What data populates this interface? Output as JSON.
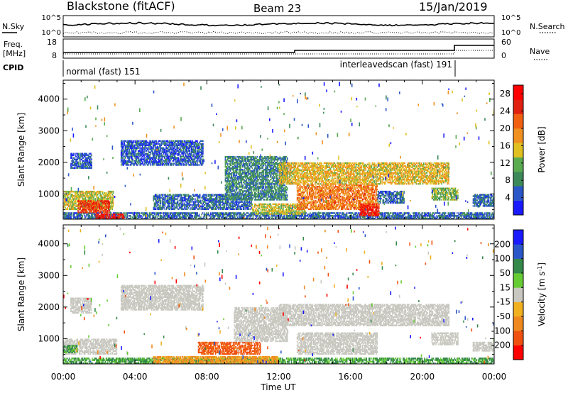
{
  "header": {
    "title": "Blackstone (fitACF)",
    "beam": "Beam 23",
    "date": "15/Jan/2019"
  },
  "status_panels": {
    "nsky_label": "N.Sky",
    "nsearch_label": "N.Search",
    "noise_ticks": [
      "10^5",
      "10^0"
    ],
    "freq_label": "Freq.",
    "freq_unit": "[MHz]",
    "freq_ticks": [
      "18",
      "8"
    ],
    "nave_label": "Nave",
    "nave_ticks": [
      "60",
      "0"
    ],
    "cpid_label": "CPID",
    "cpid_segments": [
      {
        "label": "normal (fast) 151",
        "start_h": 0.0,
        "end_h": 21.8
      },
      {
        "label": "interleavedscan (fast) 191",
        "start_h": 21.8,
        "end_h": 24.0
      }
    ]
  },
  "colors": {
    "power": [
      "#1a1aff",
      "#2a56c8",
      "#3c8a5a",
      "#5aaa50",
      "#e0c020",
      "#f09020",
      "#f06010",
      "#e02010",
      "#ff0000"
    ],
    "velocity": [
      "#ff0000",
      "#f05010",
      "#f08820",
      "#f0b020",
      "#c8c8c0",
      "#66cc33",
      "#33884a",
      "#2a56c8",
      "#1a1aff"
    ],
    "ground_scatter": "#c8c8c0"
  },
  "chart_data": [
    {
      "type": "heatmap",
      "panel": "power",
      "ylabel": "Slant Range [km]",
      "xlabel": "Time UT",
      "xlim_h": [
        0,
        24
      ],
      "ylim": [
        200,
        4600
      ],
      "x_ticks": [
        "00:00",
        "04:00",
        "08:00",
        "12:00",
        "16:00",
        "20:00",
        "00:00"
      ],
      "y_ticks": [
        1000,
        2000,
        3000,
        4000
      ],
      "colorbar": {
        "label": "Power [dB]",
        "ticks": [
          4,
          8,
          12,
          16,
          20,
          24,
          28
        ],
        "range": [
          0,
          30
        ]
      },
      "features": [
        {
          "start_h": 0.0,
          "end_h": 24.0,
          "range_low": 200,
          "range_high": 420,
          "value": 6
        },
        {
          "start_h": 0.0,
          "end_h": 2.8,
          "range_low": 500,
          "range_high": 1100,
          "value": 14
        },
        {
          "start_h": 0.8,
          "end_h": 2.6,
          "range_low": 400,
          "range_high": 800,
          "value": 24
        },
        {
          "start_h": 1.8,
          "end_h": 3.4,
          "range_low": 200,
          "range_high": 380,
          "value": 26
        },
        {
          "start_h": 0.4,
          "end_h": 1.6,
          "range_low": 1800,
          "range_high": 2300,
          "value": 5
        },
        {
          "start_h": 3.2,
          "end_h": 7.8,
          "range_low": 1900,
          "range_high": 2700,
          "value": 5
        },
        {
          "start_h": 5.0,
          "end_h": 10.5,
          "range_low": 500,
          "range_high": 1000,
          "value": 6
        },
        {
          "start_h": 9.0,
          "end_h": 12.5,
          "range_low": 800,
          "range_high": 2200,
          "value": 8
        },
        {
          "start_h": 10.5,
          "end_h": 13.5,
          "range_low": 350,
          "range_high": 700,
          "value": 14
        },
        {
          "start_h": 12.0,
          "end_h": 16.0,
          "range_low": 1300,
          "range_high": 2000,
          "value": 16
        },
        {
          "start_h": 13.0,
          "end_h": 17.5,
          "range_low": 500,
          "range_high": 1300,
          "value": 20
        },
        {
          "start_h": 16.5,
          "end_h": 17.6,
          "range_low": 300,
          "range_high": 700,
          "value": 26
        },
        {
          "start_h": 16.0,
          "end_h": 21.5,
          "range_low": 1300,
          "range_high": 2000,
          "value": 16
        },
        {
          "start_h": 17.5,
          "end_h": 19.0,
          "range_low": 700,
          "range_high": 1100,
          "value": 6
        },
        {
          "start_h": 20.5,
          "end_h": 22.0,
          "range_low": 800,
          "range_high": 1200,
          "value": 12
        },
        {
          "start_h": 22.8,
          "end_h": 24.0,
          "range_low": 600,
          "range_high": 1000,
          "value": 6
        }
      ]
    },
    {
      "type": "heatmap",
      "panel": "velocity",
      "ylabel": "Slant Range [km]",
      "xlabel": "Time UT",
      "xlim_h": [
        0,
        24
      ],
      "ylim": [
        200,
        4600
      ],
      "x_ticks": [
        "00:00",
        "04:00",
        "08:00",
        "12:00",
        "16:00",
        "20:00",
        "00:00"
      ],
      "y_ticks": [
        1000,
        2000,
        3000,
        4000
      ],
      "colorbar": {
        "label": "Velocity [m s^-1]",
        "ticks": [
          "200",
          "100",
          "50",
          "15",
          "-15",
          "-50",
          "-100",
          "-200"
        ],
        "range": [
          -250,
          250
        ]
      },
      "features": [
        {
          "start_h": 0.0,
          "end_h": 24.0,
          "range_low": 200,
          "range_high": 400,
          "value": 60
        },
        {
          "start_h": 0.0,
          "end_h": 3.0,
          "range_low": 500,
          "range_high": 1000,
          "value": 0
        },
        {
          "start_h": 0.0,
          "end_h": 0.8,
          "range_low": 550,
          "range_high": 800,
          "value": 60
        },
        {
          "start_h": 0.4,
          "end_h": 1.6,
          "range_low": 1800,
          "range_high": 2300,
          "value": 0
        },
        {
          "start_h": 3.2,
          "end_h": 7.8,
          "range_low": 1900,
          "range_high": 2700,
          "value": 0
        },
        {
          "start_h": 7.5,
          "end_h": 11.0,
          "range_low": 500,
          "range_high": 900,
          "value": -120
        },
        {
          "start_h": 5.0,
          "end_h": 12.0,
          "range_low": 200,
          "range_high": 450,
          "value": -60
        },
        {
          "start_h": 9.5,
          "end_h": 12.5,
          "range_low": 900,
          "range_high": 2000,
          "value": 0
        },
        {
          "start_h": 12.0,
          "end_h": 21.5,
          "range_low": 1400,
          "range_high": 2100,
          "value": 0
        },
        {
          "start_h": 13.0,
          "end_h": 17.5,
          "range_low": 500,
          "range_high": 1200,
          "value": 0
        },
        {
          "start_h": 20.5,
          "end_h": 22.0,
          "range_low": 800,
          "range_high": 1200,
          "value": 0
        },
        {
          "start_h": 22.8,
          "end_h": 24.0,
          "range_low": 600,
          "range_high": 900,
          "value": 0
        }
      ]
    }
  ]
}
